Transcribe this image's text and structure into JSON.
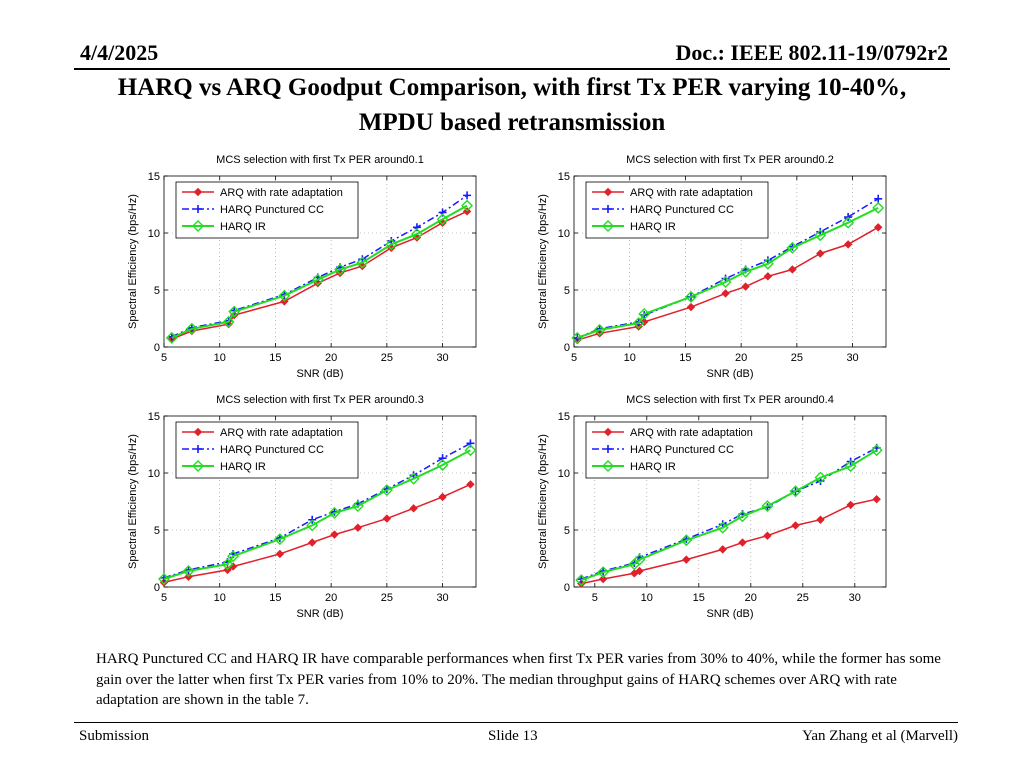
{
  "header": {
    "date": "4/4/2025",
    "doc": "Doc.: IEEE 802.11-19/0792r2"
  },
  "slide_title": {
    "line1": "HARQ vs ARQ Goodput Comparison, with first Tx PER varying 10-40%,",
    "line2": "MPDU based retransmission"
  },
  "caption": "HARQ Punctured CC and HARQ IR have comparable performances when first Tx PER varies from 30% to 40%, while the former has some gain over the latter when first Tx PER varies from 10%  to 20%. The median throughput gains of HARQ schemes over ARQ with rate adaptation are shown in the table 7.",
  "footer": {
    "left": "Submission",
    "center": "Slide 13",
    "right": "Yan Zhang et al (Marvell)"
  },
  "colors": {
    "arq": "#e0202a",
    "harq_cc": "#1a1aff",
    "harq_ir": "#22dd22"
  },
  "chart_data": [
    {
      "type": "line",
      "title": "MCS selection with first Tx PER around0.1",
      "xlabel": "SNR (dB)",
      "ylabel": "Spectral Efficiency (bps/Hz)",
      "xlim": [
        5,
        33
      ],
      "ylim": [
        0,
        15
      ],
      "xticks": [
        "5",
        "10",
        "15",
        "20",
        "25",
        "30"
      ],
      "yticks": [
        "0",
        "5",
        "10",
        "15"
      ],
      "legend": [
        "ARQ with rate adaptation",
        "HARQ Punctured CC",
        "HARQ IR"
      ],
      "x": [
        5.7,
        7.5,
        10.8,
        11.3,
        15.8,
        18.8,
        20.8,
        22.8,
        25.4,
        27.7,
        30.0,
        32.2
      ],
      "series": [
        {
          "name": "ARQ with rate adaptation",
          "values": [
            0.7,
            1.4,
            2.0,
            2.8,
            4.0,
            5.6,
            6.5,
            7.1,
            8.7,
            9.6,
            10.9,
            11.9
          ]
        },
        {
          "name": "HARQ Punctured CC",
          "values": [
            0.9,
            1.7,
            2.3,
            3.2,
            4.6,
            6.1,
            7.0,
            7.7,
            9.3,
            10.5,
            11.8,
            13.3
          ]
        },
        {
          "name": "HARQ IR",
          "values": [
            0.8,
            1.6,
            2.2,
            3.1,
            4.5,
            5.9,
            6.8,
            7.4,
            9.0,
            9.9,
            11.2,
            12.4
          ]
        }
      ]
    },
    {
      "type": "line",
      "title": "MCS selection with first Tx PER around0.2",
      "xlabel": "SNR (dB)",
      "ylabel": "Spectral Efficiency (bps/Hz)",
      "xlim": [
        5,
        33
      ],
      "ylim": [
        0,
        15
      ],
      "xticks": [
        "5",
        "10",
        "15",
        "20",
        "25",
        "30"
      ],
      "yticks": [
        "0",
        "5",
        "10",
        "15"
      ],
      "legend": [
        "ARQ with rate adaptation",
        "HARQ Punctured CC",
        "HARQ IR"
      ],
      "x": [
        5.3,
        7.3,
        10.8,
        11.3,
        15.5,
        18.6,
        20.4,
        22.4,
        24.6,
        27.1,
        29.6,
        32.3
      ],
      "series": [
        {
          "name": "ARQ with rate adaptation",
          "values": [
            0.6,
            1.2,
            1.8,
            2.2,
            3.5,
            4.7,
            5.3,
            6.2,
            6.8,
            8.2,
            9.0,
            10.5
          ]
        },
        {
          "name": "HARQ Punctured CC",
          "values": [
            0.8,
            1.6,
            2.2,
            2.8,
            4.4,
            6.0,
            6.8,
            7.6,
            8.8,
            10.1,
            11.4,
            13.0
          ]
        },
        {
          "name": "HARQ IR",
          "values": [
            0.8,
            1.5,
            2.1,
            2.9,
            4.4,
            5.7,
            6.6,
            7.3,
            8.7,
            9.8,
            10.9,
            12.2
          ]
        }
      ]
    },
    {
      "type": "line",
      "title": "MCS selection with first Tx PER around0.3",
      "xlabel": "SNR (dB)",
      "ylabel": "Spectral Efficiency (bps/Hz)",
      "xlim": [
        5,
        33
      ],
      "ylim": [
        0,
        15
      ],
      "xticks": [
        "5",
        "10",
        "15",
        "20",
        "25",
        "30"
      ],
      "yticks": [
        "0",
        "5",
        "10",
        "15"
      ],
      "legend": [
        "ARQ with rate adaptation",
        "HARQ Punctured CC",
        "HARQ IR"
      ],
      "x": [
        5.0,
        7.2,
        10.7,
        11.2,
        15.4,
        18.3,
        20.3,
        22.4,
        25.0,
        27.4,
        30.0,
        32.5
      ],
      "series": [
        {
          "name": "ARQ with rate adaptation",
          "values": [
            0.4,
            0.9,
            1.5,
            1.8,
            2.9,
            3.9,
            4.6,
            5.2,
            6.0,
            6.9,
            7.9,
            9.0
          ]
        },
        {
          "name": "HARQ Punctured CC",
          "values": [
            0.8,
            1.5,
            2.2,
            2.9,
            4.3,
            5.9,
            6.6,
            7.3,
            8.6,
            9.8,
            11.3,
            12.6
          ]
        },
        {
          "name": "HARQ IR",
          "values": [
            0.7,
            1.4,
            2.0,
            2.7,
            4.2,
            5.4,
            6.5,
            7.1,
            8.5,
            9.5,
            10.7,
            12.0
          ]
        }
      ]
    },
    {
      "type": "line",
      "title": "MCS selection with first Tx PER around0.4",
      "xlabel": "SNR (dB)",
      "ylabel": "Spectral Efficiency (bps/Hz)",
      "xlim": [
        3,
        33
      ],
      "ylim": [
        0,
        15
      ],
      "xticks": [
        "5",
        "10",
        "15",
        "20",
        "25",
        "30"
      ],
      "yticks": [
        "0",
        "5",
        "10",
        "15"
      ],
      "legend": [
        "ARQ with rate adaptation",
        "HARQ Punctured CC",
        "HARQ IR"
      ],
      "x": [
        3.7,
        5.8,
        8.8,
        9.3,
        13.8,
        17.3,
        19.2,
        21.6,
        24.3,
        26.7,
        29.6,
        32.1
      ],
      "series": [
        {
          "name": "ARQ with rate adaptation",
          "values": [
            0.3,
            0.7,
            1.2,
            1.4,
            2.4,
            3.3,
            3.9,
            4.5,
            5.4,
            5.9,
            7.2,
            7.7
          ]
        },
        {
          "name": "HARQ Punctured CC",
          "values": [
            0.7,
            1.4,
            2.1,
            2.6,
            4.2,
            5.5,
            6.4,
            7.0,
            8.4,
            9.3,
            11.0,
            12.2
          ]
        },
        {
          "name": "HARQ IR",
          "values": [
            0.6,
            1.3,
            2.0,
            2.4,
            4.1,
            5.2,
            6.2,
            7.1,
            8.4,
            9.6,
            10.6,
            12.0
          ]
        }
      ]
    }
  ]
}
